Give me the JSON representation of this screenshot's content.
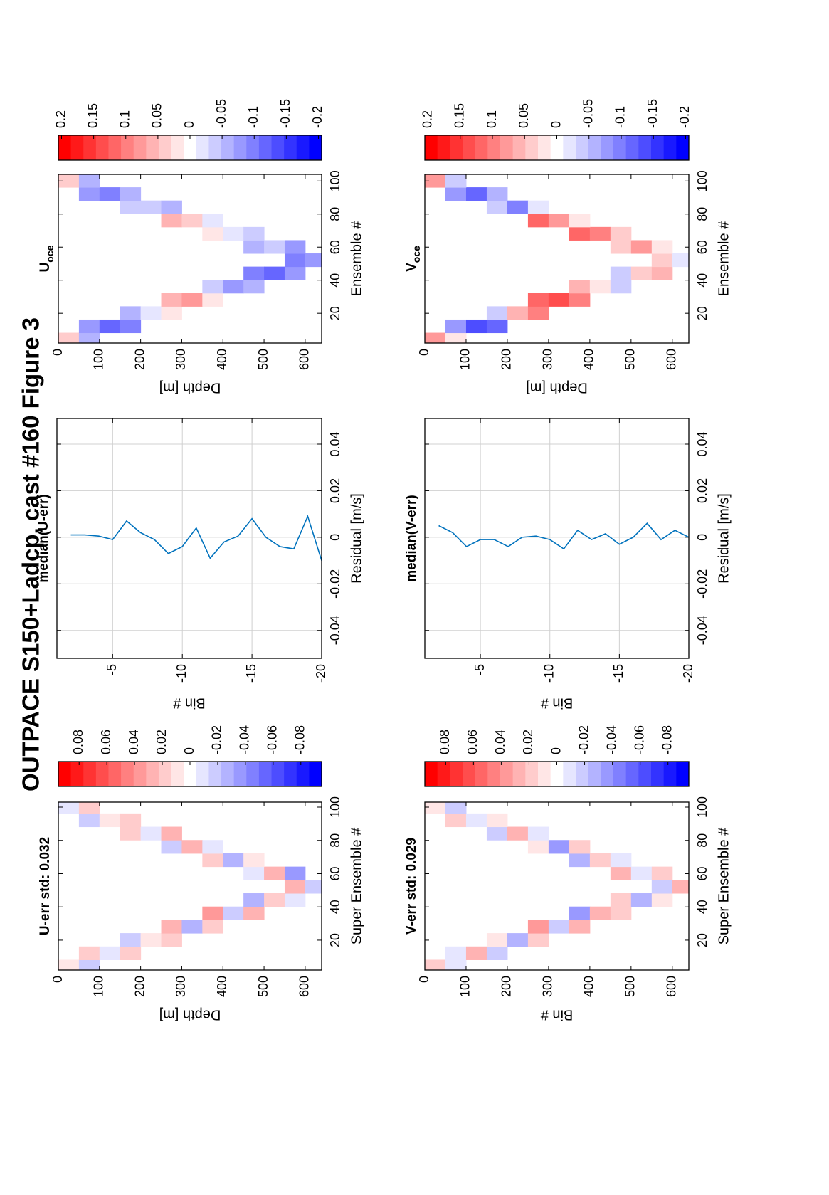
{
  "title": "OUTPACE S150+Ladcp, cast #160  Figure 3",
  "chart_data": [
    {
      "type": "heatmap",
      "title": "U-err std: 0.032",
      "xlabel": "Super Ensemble #",
      "ylabel": "Depth [m]",
      "x": [
        4,
        12,
        20,
        28,
        36,
        44,
        52,
        60,
        68,
        76,
        84,
        92,
        100
      ],
      "y": [
        25,
        75,
        125,
        175,
        225,
        275,
        325,
        375,
        425,
        475,
        525,
        575,
        625
      ],
      "z": [
        [
          0.01,
          -0.02,
          null,
          null,
          null,
          null,
          null,
          null,
          null,
          null,
          null,
          null,
          null
        ],
        [
          null,
          0.02,
          -0.01,
          0.015,
          null,
          null,
          null,
          null,
          null,
          null,
          null,
          null,
          null
        ],
        [
          null,
          null,
          null,
          -0.02,
          0.01,
          0.02,
          null,
          null,
          null,
          null,
          null,
          null,
          null
        ],
        [
          null,
          null,
          null,
          null,
          null,
          0.03,
          -0.03,
          0.02,
          null,
          null,
          null,
          null,
          null
        ],
        [
          null,
          null,
          null,
          null,
          null,
          null,
          null,
          0.04,
          -0.02,
          0.03,
          null,
          null,
          null
        ],
        [
          null,
          null,
          null,
          null,
          null,
          null,
          null,
          null,
          null,
          -0.03,
          0.02,
          -0.01,
          null
        ],
        [
          null,
          null,
          null,
          null,
          null,
          null,
          null,
          null,
          null,
          null,
          null,
          0.03,
          -0.02
        ],
        [
          null,
          null,
          null,
          null,
          null,
          null,
          null,
          null,
          null,
          -0.01,
          0.03,
          -0.04,
          null
        ],
        [
          null,
          null,
          null,
          null,
          null,
          null,
          null,
          0.02,
          -0.03,
          0.01,
          null,
          null,
          null
        ],
        [
          null,
          null,
          null,
          null,
          null,
          -0.02,
          0.03,
          -0.01,
          null,
          null,
          null,
          null,
          null
        ],
        [
          null,
          null,
          null,
          0.02,
          -0.01,
          0.03,
          null,
          null,
          null,
          null,
          null,
          null,
          null
        ],
        [
          null,
          -0.02,
          0.01,
          0.02,
          null,
          null,
          null,
          null,
          null,
          null,
          null,
          null,
          null
        ],
        [
          -0.01,
          0.02,
          null,
          null,
          null,
          null,
          null,
          null,
          null,
          null,
          null,
          null,
          null
        ]
      ],
      "xlim": [
        2,
        103
      ],
      "ylim": [
        0,
        640
      ],
      "y_reversed": true,
      "xticks": [
        20,
        40,
        60,
        80,
        100
      ],
      "yticks": [
        0,
        100,
        200,
        300,
        400,
        500,
        600
      ],
      "clim": [
        -0.095,
        0.095
      ],
      "cticks": [
        0.08,
        0.06,
        0.04,
        0.02,
        0,
        -0.02,
        -0.04,
        -0.06,
        -0.08
      ]
    },
    {
      "type": "line",
      "title": "median(U-err)",
      "xlabel": "Residual [m/s]",
      "ylabel": "Bin #",
      "color": "#0072bd",
      "bins": [
        -2,
        -3,
        -4,
        -5,
        -6,
        -7,
        -8,
        -9,
        -10,
        -11,
        -12,
        -13,
        -14,
        -15,
        -16,
        -17,
        -18,
        -19,
        -20
      ],
      "values": [
        0.001,
        0.001,
        0.0005,
        -0.001,
        0.007,
        0.002,
        -0.001,
        -0.007,
        -0.004,
        0.004,
        -0.009,
        -0.002,
        0.0005,
        0.008,
        0,
        -0.004,
        -0.005,
        0.009,
        -0.01
      ],
      "xlim": [
        -0.052,
        0.051
      ],
      "ylim": [
        -20,
        -1
      ],
      "xticks": [
        -0.04,
        -0.02,
        0,
        0.02,
        0.04
      ],
      "yticks": [
        -20,
        -15,
        -10,
        -5
      ],
      "grid": true
    },
    {
      "type": "heatmap",
      "title": "U",
      "title_subscript": "oce",
      "xlabel": "Ensemble #",
      "ylabel": "Depth [m]",
      "x": [
        4,
        12,
        20,
        28,
        36,
        44,
        52,
        60,
        68,
        76,
        84,
        92,
        100
      ],
      "y": [
        25,
        75,
        125,
        175,
        225,
        275,
        325,
        375,
        425,
        475,
        525,
        575,
        625
      ],
      "z": [
        [
          0.05,
          -0.06,
          null,
          null,
          null,
          null,
          null,
          null,
          null,
          null,
          null,
          null,
          null
        ],
        [
          null,
          -0.08,
          -0.12,
          -0.1,
          null,
          null,
          null,
          null,
          null,
          null,
          null,
          null,
          null
        ],
        [
          null,
          null,
          null,
          -0.06,
          -0.03,
          0.02,
          null,
          null,
          null,
          null,
          null,
          null,
          null
        ],
        [
          null,
          null,
          null,
          null,
          null,
          0.06,
          0.08,
          0.03,
          null,
          null,
          null,
          null,
          null
        ],
        [
          null,
          null,
          null,
          null,
          null,
          null,
          null,
          -0.05,
          -0.08,
          -0.06,
          null,
          null,
          null
        ],
        [
          null,
          null,
          null,
          null,
          null,
          null,
          null,
          null,
          null,
          -0.1,
          -0.12,
          -0.09,
          null
        ],
        [
          null,
          null,
          null,
          null,
          null,
          null,
          null,
          null,
          null,
          null,
          null,
          -0.1,
          -0.08
        ],
        [
          null,
          null,
          null,
          null,
          null,
          null,
          null,
          null,
          null,
          -0.06,
          -0.04,
          -0.08,
          null
        ],
        [
          null,
          null,
          null,
          null,
          null,
          null,
          null,
          0.02,
          -0.02,
          -0.05,
          null,
          null,
          null
        ],
        [
          null,
          null,
          null,
          null,
          null,
          0.06,
          0.04,
          -0.02,
          null,
          null,
          null,
          null,
          null
        ],
        [
          null,
          null,
          null,
          -0.05,
          -0.04,
          -0.06,
          null,
          null,
          null,
          null,
          null,
          null,
          null
        ],
        [
          null,
          -0.08,
          -0.1,
          -0.07,
          null,
          null,
          null,
          null,
          null,
          null,
          null,
          null,
          null
        ],
        [
          0.04,
          -0.06,
          null,
          null,
          null,
          null,
          null,
          null,
          null,
          null,
          null,
          null,
          null
        ]
      ],
      "xlim": [
        2,
        104
      ],
      "ylim": [
        0,
        640
      ],
      "y_reversed": true,
      "xticks": [
        20,
        40,
        60,
        80,
        100
      ],
      "yticks": [
        0,
        100,
        200,
        300,
        400,
        500,
        600
      ],
      "clim": [
        -0.205,
        0.205
      ],
      "cticks": [
        0.2,
        0.15,
        0.1,
        0.05,
        0,
        -0.05,
        -0.1,
        -0.15,
        -0.2
      ]
    },
    {
      "type": "heatmap",
      "title": "V-err std: 0.029",
      "xlabel": "Super Ensemble #",
      "ylabel": "Bin #",
      "x": [
        4,
        12,
        20,
        28,
        36,
        44,
        52,
        60,
        68,
        76,
        84,
        92,
        100
      ],
      "y": [
        25,
        75,
        125,
        175,
        225,
        275,
        325,
        375,
        425,
        475,
        525,
        575,
        625
      ],
      "z": [
        [
          0.02,
          -0.01,
          null,
          null,
          null,
          null,
          null,
          null,
          null,
          null,
          null,
          null,
          null
        ],
        [
          null,
          -0.01,
          0.03,
          -0.02,
          null,
          null,
          null,
          null,
          null,
          null,
          null,
          null,
          null
        ],
        [
          null,
          null,
          null,
          0.01,
          -0.03,
          0.02,
          null,
          null,
          null,
          null,
          null,
          null,
          null
        ],
        [
          null,
          null,
          null,
          null,
          null,
          0.04,
          -0.02,
          0.03,
          null,
          null,
          null,
          null,
          null
        ],
        [
          null,
          null,
          null,
          null,
          null,
          null,
          null,
          -0.04,
          0.03,
          0.02,
          null,
          null,
          null
        ],
        [
          null,
          null,
          null,
          null,
          null,
          null,
          null,
          null,
          null,
          0.02,
          -0.03,
          0.01,
          null
        ],
        [
          null,
          null,
          null,
          null,
          null,
          null,
          null,
          null,
          null,
          null,
          null,
          -0.02,
          0.03
        ],
        [
          null,
          null,
          null,
          null,
          null,
          null,
          null,
          null,
          null,
          0.03,
          -0.01,
          0.02,
          null
        ],
        [
          null,
          null,
          null,
          null,
          null,
          null,
          null,
          -0.03,
          0.02,
          -0.01,
          null,
          null,
          null
        ],
        [
          null,
          null,
          null,
          null,
          null,
          0.01,
          -0.04,
          0.02,
          null,
          null,
          null,
          null,
          null
        ],
        [
          null,
          null,
          null,
          -0.02,
          0.03,
          -0.01,
          null,
          null,
          null,
          null,
          null,
          null,
          null
        ],
        [
          null,
          0.02,
          -0.01,
          0.01,
          null,
          null,
          null,
          null,
          null,
          null,
          null,
          null,
          null
        ],
        [
          0.01,
          -0.02,
          null,
          null,
          null,
          null,
          null,
          null,
          null,
          null,
          null,
          null,
          null
        ]
      ],
      "xlim": [
        2,
        103
      ],
      "ylim": [
        0,
        640
      ],
      "y_reversed": true,
      "xticks": [
        20,
        40,
        60,
        80,
        100
      ],
      "yticks": [
        0,
        100,
        200,
        300,
        400,
        500,
        600
      ],
      "clim": [
        -0.095,
        0.095
      ],
      "cticks": [
        0.08,
        0.06,
        0.04,
        0.02,
        0,
        -0.02,
        -0.04,
        -0.06,
        -0.08
      ]
    },
    {
      "type": "line",
      "title": "median(V-err)",
      "xlabel": "Residual [m/s]",
      "ylabel": "Bin #",
      "color": "#0072bd",
      "bins": [
        -2,
        -3,
        -4,
        -5,
        -6,
        -7,
        -8,
        -9,
        -10,
        -11,
        -12,
        -13,
        -14,
        -15,
        -16,
        -17,
        -18,
        -19,
        -20
      ],
      "values": [
        0.005,
        0.002,
        -0.004,
        -0.001,
        -0.001,
        -0.004,
        0,
        0.0005,
        -0.001,
        -0.005,
        0.003,
        -0.001,
        0.0015,
        -0.003,
        0,
        0.006,
        -0.001,
        0.003,
        0
      ],
      "xlim": [
        -0.052,
        0.051
      ],
      "ylim": [
        -20,
        -1
      ],
      "xticks": [
        -0.04,
        -0.02,
        0,
        0.02,
        0.04
      ],
      "yticks": [
        -20,
        -15,
        -10,
        -5
      ],
      "grid": true
    },
    {
      "type": "heatmap",
      "title": "V",
      "title_subscript": "oce",
      "xlabel": "Ensemble #",
      "ylabel": "Depth [m]",
      "x": [
        4,
        12,
        20,
        28,
        36,
        44,
        52,
        60,
        68,
        76,
        84,
        92,
        100
      ],
      "y": [
        25,
        75,
        125,
        175,
        225,
        275,
        325,
        375,
        425,
        475,
        525,
        575,
        625
      ],
      "z": [
        [
          0.08,
          0.02,
          null,
          null,
          null,
          null,
          null,
          null,
          null,
          null,
          null,
          null,
          null
        ],
        [
          null,
          -0.08,
          -0.14,
          -0.12,
          null,
          null,
          null,
          null,
          null,
          null,
          null,
          null,
          null
        ],
        [
          null,
          null,
          null,
          -0.05,
          0.06,
          0.1,
          null,
          null,
          null,
          null,
          null,
          null,
          null
        ],
        [
          null,
          null,
          null,
          null,
          null,
          0.12,
          0.15,
          0.1,
          null,
          null,
          null,
          null,
          null
        ],
        [
          null,
          null,
          null,
          null,
          null,
          null,
          null,
          0.06,
          0.03,
          -0.04,
          null,
          null,
          null
        ],
        [
          null,
          null,
          null,
          null,
          null,
          null,
          null,
          null,
          null,
          -0.05,
          0.04,
          0.06,
          null
        ],
        [
          null,
          null,
          null,
          null,
          null,
          null,
          null,
          null,
          null,
          null,
          null,
          0.04,
          -0.03
        ],
        [
          null,
          null,
          null,
          null,
          null,
          null,
          null,
          null,
          null,
          0.05,
          0.08,
          0.02,
          null
        ],
        [
          null,
          null,
          null,
          null,
          null,
          null,
          null,
          0.13,
          0.1,
          0.05,
          null,
          null,
          null
        ],
        [
          null,
          null,
          null,
          null,
          null,
          0.12,
          0.08,
          0.03,
          null,
          null,
          null,
          null,
          null
        ],
        [
          null,
          null,
          null,
          -0.04,
          -0.1,
          -0.03,
          null,
          null,
          null,
          null,
          null,
          null,
          null
        ],
        [
          null,
          -0.08,
          -0.12,
          -0.06,
          null,
          null,
          null,
          null,
          null,
          null,
          null,
          null,
          null
        ],
        [
          0.08,
          -0.05,
          null,
          null,
          null,
          null,
          null,
          null,
          null,
          null,
          null,
          null,
          null
        ]
      ],
      "xlim": [
        2,
        104
      ],
      "ylim": [
        0,
        640
      ],
      "y_reversed": true,
      "xticks": [
        20,
        40,
        60,
        80,
        100
      ],
      "yticks": [
        0,
        100,
        200,
        300,
        400,
        500,
        600
      ],
      "clim": [
        -0.205,
        0.205
      ],
      "cticks": [
        0.2,
        0.15,
        0.1,
        0.05,
        0,
        -0.05,
        -0.1,
        -0.15,
        -0.2
      ]
    }
  ]
}
